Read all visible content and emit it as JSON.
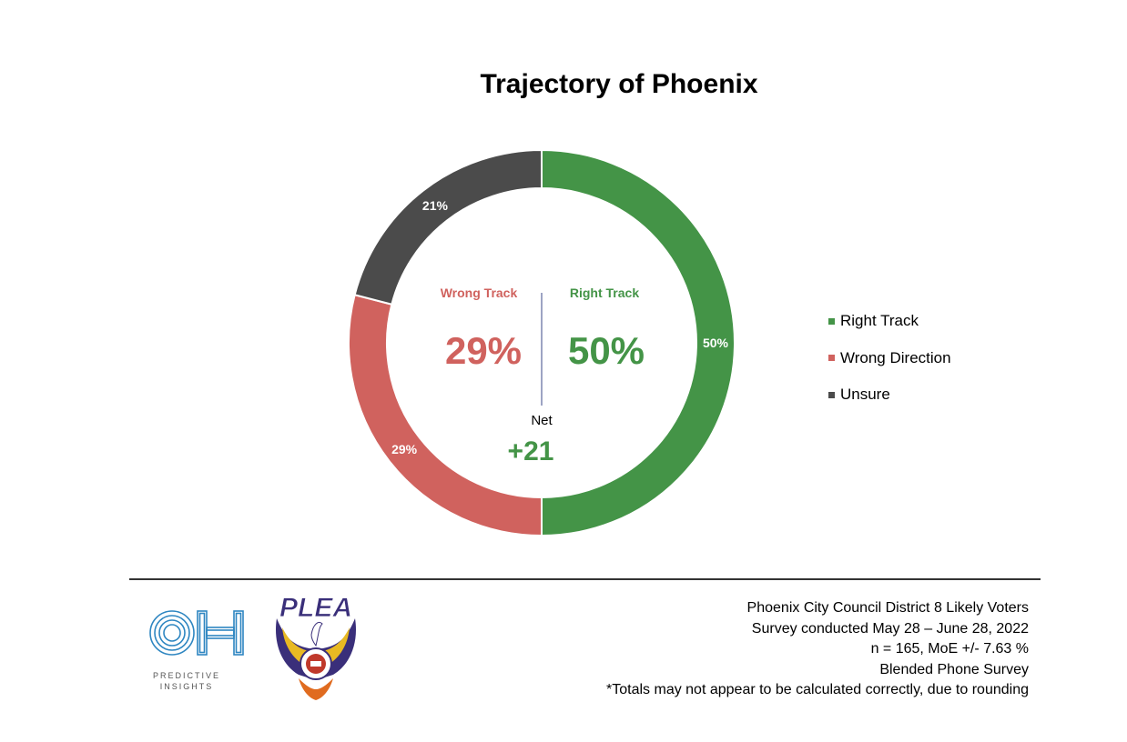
{
  "chart_data": {
    "type": "pie",
    "title": "Trajectory of Phoenix",
    "slices": [
      {
        "label": "Right Track",
        "value": 50,
        "display": "50%",
        "color": "#449447"
      },
      {
        "label": "Wrong Direction",
        "value": 29,
        "display": "29%",
        "color": "#d0625e"
      },
      {
        "label": "Unsure",
        "value": 21,
        "display": "21%",
        "color": "#4b4b4b"
      }
    ],
    "legend_position": "right"
  },
  "center": {
    "wrong_label": "Wrong Track",
    "wrong_value": "29%",
    "right_label": "Right Track",
    "right_value": "50%",
    "net_label": "Net",
    "net_value": "+21"
  },
  "footer": {
    "lines": [
      "Phoenix City Council District 8 Likely Voters",
      "Survey conducted May 28 – June 28, 2022",
      "n = 165, MoE +/- 7.63 %",
      "Blended Phone Survey",
      "*Totals may not appear to be calculated correctly, due to rounding"
    ],
    "logo_text": "PREDICTIVE INSIGHTS",
    "logo_line1": "PREDICTIVE",
    "logo_line2": "INSIGHTS",
    "plea_text": "PLEA"
  },
  "colors": {
    "right": "#449447",
    "wrong": "#d0625e",
    "unsure": "#4b4b4b",
    "oh_blue": "#2e86c1"
  }
}
